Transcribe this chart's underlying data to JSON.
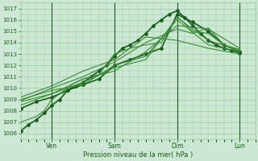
{
  "title": "",
  "xlabel": "Pression niveau de la mer( hPa )",
  "ylabel": "",
  "bg_color": "#cce8d4",
  "plot_bg_color": "#cce8d4",
  "grid_color": "#99cc99",
  "line_color_dark": "#1a5c1a",
  "line_color_light": "#3a8a3a",
  "ylim": [
    1005.5,
    1017.5
  ],
  "yticks": [
    1006,
    1007,
    1008,
    1009,
    1010,
    1011,
    1012,
    1013,
    1014,
    1015,
    1016,
    1017
  ],
  "day_vline_positions": [
    24,
    72,
    120,
    168
  ],
  "xtick_labels": [
    "Ven",
    "Sam",
    "Dim",
    "Lun"
  ],
  "xtick_positions": [
    24,
    72,
    120,
    168
  ],
  "xlim": [
    0,
    180
  ],
  "lines": [
    {
      "x": [
        0,
        6,
        12,
        18,
        24,
        30,
        36,
        42,
        48,
        54,
        60,
        66,
        72,
        78,
        84,
        90,
        96,
        102,
        108,
        114,
        120,
        126,
        132,
        138,
        144,
        150,
        156,
        162,
        168
      ],
      "y": [
        1006.2,
        1006.8,
        1007.2,
        1007.8,
        1008.5,
        1009.0,
        1009.8,
        1010.2,
        1010.5,
        1011.0,
        1011.5,
        1012.0,
        1012.8,
        1013.5,
        1013.8,
        1014.2,
        1014.8,
        1015.5,
        1016.0,
        1016.5,
        1016.8,
        1016.2,
        1015.5,
        1014.8,
        1014.2,
        1013.8,
        1013.5,
        1013.3,
        1013.1
      ],
      "lw": 1.2,
      "dark": true,
      "marker": "D",
      "ms": 2.0
    },
    {
      "x": [
        0,
        12,
        24,
        36,
        48,
        60,
        72,
        84,
        96,
        108,
        120,
        132,
        144,
        156,
        168
      ],
      "y": [
        1008.2,
        1008.8,
        1009.2,
        1009.8,
        1010.3,
        1010.8,
        1012.0,
        1012.5,
        1013.0,
        1013.5,
        1016.5,
        1015.8,
        1015.0,
        1013.8,
        1013.2
      ],
      "lw": 1.2,
      "dark": true,
      "marker": "D",
      "ms": 2.0
    },
    {
      "x": [
        0,
        24,
        48,
        72,
        96,
        120,
        144,
        168
      ],
      "y": [
        1008.8,
        1009.5,
        1010.5,
        1011.8,
        1012.5,
        1016.2,
        1014.2,
        1013.3
      ],
      "lw": 0.8,
      "dark": false,
      "marker": null,
      "ms": 0
    },
    {
      "x": [
        0,
        24,
        48,
        72,
        96,
        120,
        144,
        168
      ],
      "y": [
        1009.0,
        1009.8,
        1010.3,
        1012.0,
        1012.8,
        1016.0,
        1013.8,
        1013.2
      ],
      "lw": 0.8,
      "dark": false,
      "marker": null,
      "ms": 0
    },
    {
      "x": [
        0,
        24,
        48,
        72,
        96,
        120,
        144,
        168
      ],
      "y": [
        1008.5,
        1009.5,
        1010.8,
        1011.5,
        1013.2,
        1015.5,
        1015.2,
        1013.5
      ],
      "lw": 0.8,
      "dark": false,
      "marker": null,
      "ms": 0
    },
    {
      "x": [
        0,
        24,
        48,
        72,
        96,
        120,
        132,
        144,
        156,
        168
      ],
      "y": [
        1008.9,
        1010.0,
        1011.0,
        1012.3,
        1014.0,
        1015.2,
        1014.8,
        1015.3,
        1013.8,
        1013.2
      ],
      "lw": 0.8,
      "dark": false,
      "marker": null,
      "ms": 0
    },
    {
      "x": [
        0,
        24,
        48,
        72,
        96,
        120,
        144,
        168
      ],
      "y": [
        1009.2,
        1010.2,
        1011.5,
        1012.5,
        1014.5,
        1014.2,
        1013.5,
        1013.0
      ],
      "lw": 0.8,
      "dark": false,
      "marker": null,
      "ms": 0
    },
    {
      "x": [
        0,
        12,
        18,
        24,
        30,
        36,
        42,
        48,
        60,
        72,
        84,
        96,
        108,
        120,
        132,
        144,
        156,
        168
      ],
      "y": [
        1007.0,
        1007.5,
        1008.0,
        1009.0,
        1009.5,
        1010.0,
        1010.5,
        1010.8,
        1011.2,
        1013.0,
        1013.5,
        1013.8,
        1014.0,
        1016.3,
        1015.0,
        1014.8,
        1013.8,
        1013.4
      ],
      "lw": 0.8,
      "dark": false,
      "marker": null,
      "ms": 0
    }
  ]
}
